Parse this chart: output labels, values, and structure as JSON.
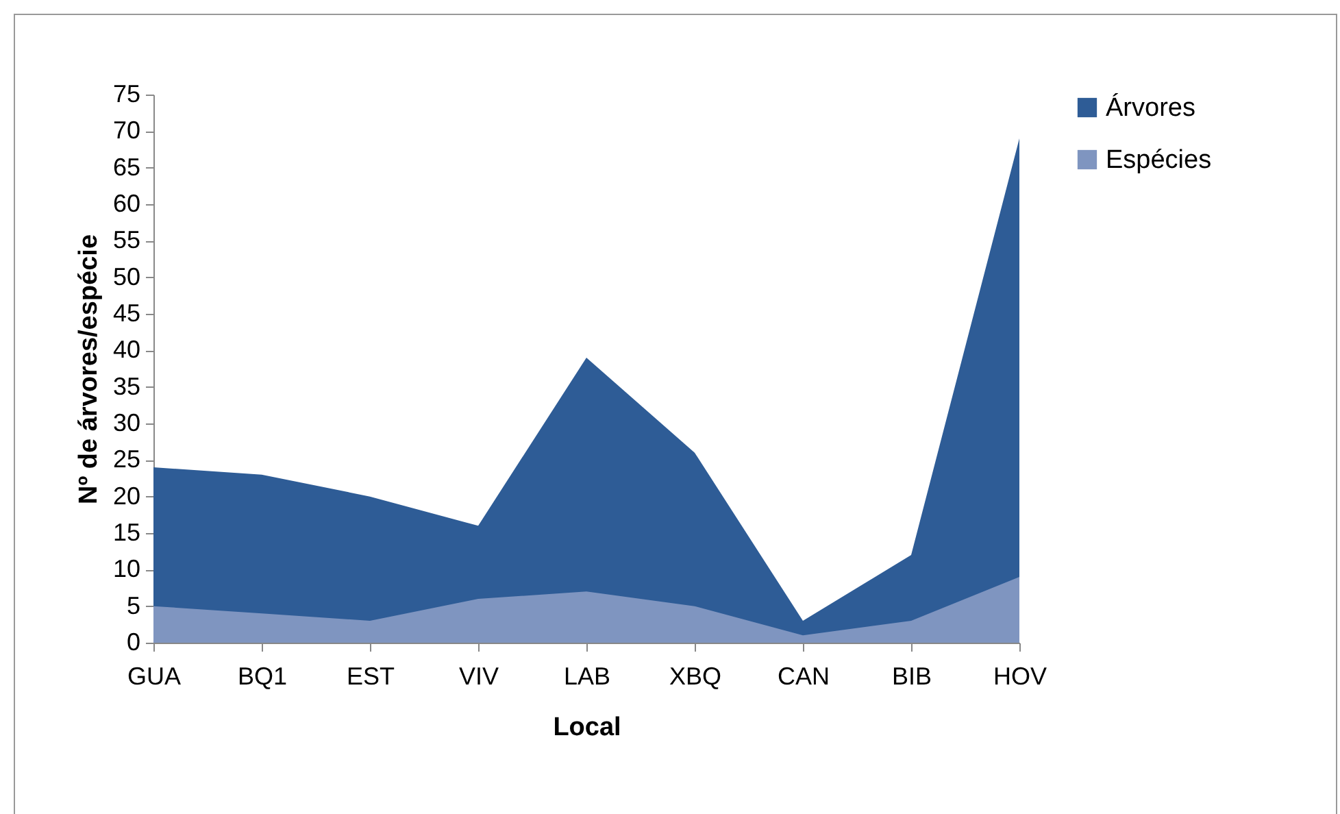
{
  "chart_data": {
    "type": "area",
    "xlabel": "Local",
    "ylabel": "Nº de árvores/espécie",
    "categories": [
      "GUA",
      "BQ1",
      "EST",
      "VIV",
      "LAB",
      "XBQ",
      "CAN",
      "BIB",
      "HOV"
    ],
    "series": [
      {
        "name": "Árvores",
        "color": "#2e5c96",
        "values": [
          24,
          23,
          20,
          16,
          39,
          26,
          3,
          12,
          69
        ]
      },
      {
        "name": "Espécies",
        "color": "#7f95c0",
        "values": [
          5,
          4,
          3,
          6,
          7,
          5,
          1,
          3,
          9
        ]
      }
    ],
    "ylim": [
      0,
      75
    ],
    "yticks": [
      0,
      5,
      10,
      15,
      20,
      25,
      30,
      35,
      40,
      45,
      50,
      55,
      60,
      65,
      70,
      75
    ],
    "grid": false,
    "legend": "right"
  }
}
